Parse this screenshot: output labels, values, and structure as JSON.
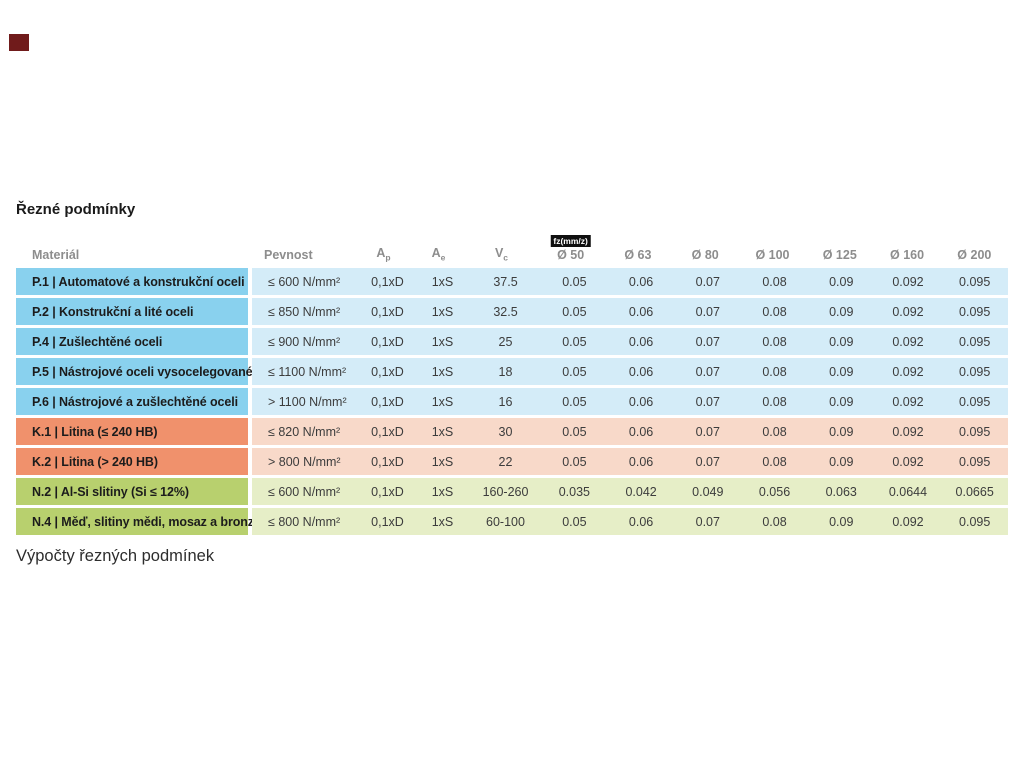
{
  "page": {
    "title": "Řezné podmínky",
    "footer_title": "Výpočty řezných podmínek"
  },
  "colors": {
    "marker": "#701b1b",
    "header_text": "#8d8d8d",
    "badge_bg": "#101010",
    "badge_text": "#ffffff",
    "group_P_label": "#89d1ee",
    "group_P_body": "#d4ecf8",
    "group_K_label": "#f0916c",
    "group_K_body": "#f8d9c9",
    "group_N_label": "#b8d06e",
    "group_N_body": "#e6eec7"
  },
  "table": {
    "fz_badge": "fz(mm/z)",
    "headers": {
      "material": "Materiál",
      "pevnost": "Pevnost",
      "ap": {
        "base": "A",
        "sub": "p"
      },
      "ae": {
        "base": "A",
        "sub": "e"
      },
      "vc": {
        "base": "V",
        "sub": "c"
      },
      "diameters": [
        "Ø 50",
        "Ø 63",
        "Ø 80",
        "Ø 100",
        "Ø 125",
        "Ø 160",
        "Ø 200"
      ]
    },
    "rows": [
      {
        "group": "P",
        "material": "P.1 | Automatové a konstrukční oceli",
        "pevnost": "≤ 600 N/mm²",
        "ap": "0,1xD",
        "ae": "1xS",
        "vc": "37.5",
        "fz": [
          "0.05",
          "0.06",
          "0.07",
          "0.08",
          "0.09",
          "0.092",
          "0.095"
        ]
      },
      {
        "group": "P",
        "material": "P.2 | Konstrukční a lité oceli",
        "pevnost": "≤ 850 N/mm²",
        "ap": "0,1xD",
        "ae": "1xS",
        "vc": "32.5",
        "fz": [
          "0.05",
          "0.06",
          "0.07",
          "0.08",
          "0.09",
          "0.092",
          "0.095"
        ]
      },
      {
        "group": "P",
        "material": "P.4 | Zušlechtěné oceli",
        "pevnost": "≤ 900 N/mm²",
        "ap": "0,1xD",
        "ae": "1xS",
        "vc": "25",
        "fz": [
          "0.05",
          "0.06",
          "0.07",
          "0.08",
          "0.09",
          "0.092",
          "0.095"
        ]
      },
      {
        "group": "P",
        "material": "P.5 | Nástrojové oceli vysocelegované",
        "pevnost": "≤ 1100 N/mm²",
        "ap": "0,1xD",
        "ae": "1xS",
        "vc": "18",
        "fz": [
          "0.05",
          "0.06",
          "0.07",
          "0.08",
          "0.09",
          "0.092",
          "0.095"
        ]
      },
      {
        "group": "P",
        "material": "P.6 | Nástrojové a zušlechtěné oceli",
        "pevnost": "> 1100 N/mm²",
        "ap": "0,1xD",
        "ae": "1xS",
        "vc": "16",
        "fz": [
          "0.05",
          "0.06",
          "0.07",
          "0.08",
          "0.09",
          "0.092",
          "0.095"
        ]
      },
      {
        "group": "K",
        "material": "K.1 | Litina (≤ 240 HB)",
        "pevnost": "≤ 820 N/mm²",
        "ap": "0,1xD",
        "ae": "1xS",
        "vc": "30",
        "fz": [
          "0.05",
          "0.06",
          "0.07",
          "0.08",
          "0.09",
          "0.092",
          "0.095"
        ]
      },
      {
        "group": "K",
        "material": "K.2 | Litina (> 240 HB)",
        "pevnost": "> 800 N/mm²",
        "ap": "0,1xD",
        "ae": "1xS",
        "vc": "22",
        "fz": [
          "0.05",
          "0.06",
          "0.07",
          "0.08",
          "0.09",
          "0.092",
          "0.095"
        ]
      },
      {
        "group": "N",
        "material": "N.2 | Al-Si slitiny (Si ≤ 12%)",
        "pevnost": "≤ 600 N/mm²",
        "ap": "0,1xD",
        "ae": "1xS",
        "vc": "160-260",
        "fz": [
          "0.035",
          "0.042",
          "0.049",
          "0.056",
          "0.063",
          "0.0644",
          "0.0665"
        ]
      },
      {
        "group": "N",
        "material": "N.4 | Měď, slitiny mědi, mosaz a bronz",
        "pevnost": "≤ 800 N/mm²",
        "ap": "0,1xD",
        "ae": "1xS",
        "vc": "60-100",
        "fz": [
          "0.05",
          "0.06",
          "0.07",
          "0.08",
          "0.09",
          "0.092",
          "0.095"
        ]
      }
    ]
  }
}
